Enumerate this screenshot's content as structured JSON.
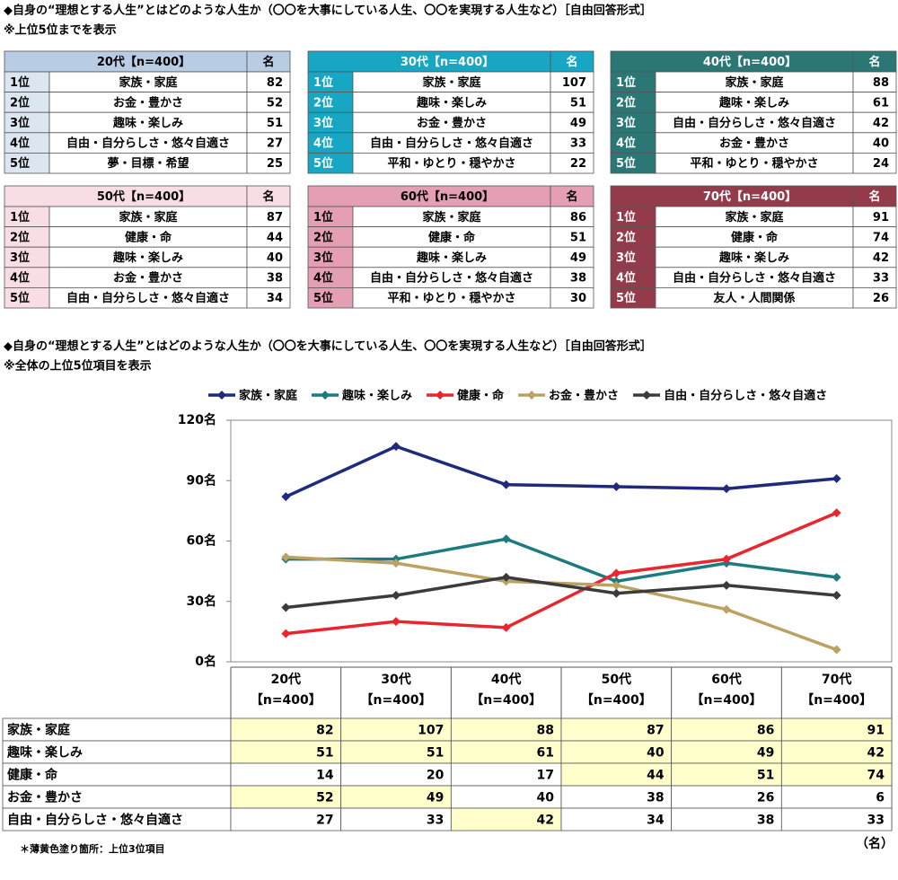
{
  "header": {
    "title": "◆自身の“理想とする人生”とはどのような人生か（〇〇を大事にしている人生、〇〇を実現する人生など）［自由回答形式］",
    "note": "※上位5位までを表示"
  },
  "tables": [
    {
      "title": "20代【n=400】",
      "count_label": "名",
      "header_color": "#b8cce4",
      "rank_color": "#dce6f1",
      "text_color": "#000000",
      "rows": [
        {
          "rank": "1位",
          "item": "家族・家庭",
          "count": 82
        },
        {
          "rank": "2位",
          "item": "お金・豊かさ",
          "count": 52
        },
        {
          "rank": "3位",
          "item": "趣味・楽しみ",
          "count": 51
        },
        {
          "rank": "4位",
          "item": "自由・自分らしさ・悠々自適さ",
          "count": 27
        },
        {
          "rank": "5位",
          "item": "夢・目標・希望",
          "count": 25
        }
      ]
    },
    {
      "title": "30代【n=400】",
      "count_label": "名",
      "header_color": "#17a6c4",
      "rank_color": "#17a6c4",
      "text_color": "#ffffff",
      "rows": [
        {
          "rank": "1位",
          "item": "家族・家庭",
          "count": 107
        },
        {
          "rank": "2位",
          "item": "趣味・楽しみ",
          "count": 51
        },
        {
          "rank": "3位",
          "item": "お金・豊かさ",
          "count": 49
        },
        {
          "rank": "4位",
          "item": "自由・自分らしさ・悠々自適さ",
          "count": 33
        },
        {
          "rank": "5位",
          "item": "平和・ゆとり・穏やかさ",
          "count": 22
        }
      ]
    },
    {
      "title": "40代【n=400】",
      "count_label": "名",
      "header_color": "#2b7775",
      "rank_color": "#2b7775",
      "text_color": "#ffffff",
      "rows": [
        {
          "rank": "1位",
          "item": "家族・家庭",
          "count": 88
        },
        {
          "rank": "2位",
          "item": "趣味・楽しみ",
          "count": 61
        },
        {
          "rank": "3位",
          "item": "自由・自分らしさ・悠々自適さ",
          "count": 42
        },
        {
          "rank": "4位",
          "item": "お金・豊かさ",
          "count": 40
        },
        {
          "rank": "5位",
          "item": "平和・ゆとり・穏やかさ",
          "count": 24
        }
      ]
    },
    {
      "title": "50代【n=400】",
      "count_label": "名",
      "header_color": "#f9dde5",
      "rank_color": "#f9dde5",
      "text_color": "#000000",
      "rows": [
        {
          "rank": "1位",
          "item": "家族・家庭",
          "count": 87
        },
        {
          "rank": "2位",
          "item": "健康・命",
          "count": 44
        },
        {
          "rank": "3位",
          "item": "趣味・楽しみ",
          "count": 40
        },
        {
          "rank": "4位",
          "item": "お金・豊かさ",
          "count": 38
        },
        {
          "rank": "5位",
          "item": "自由・自分らしさ・悠々自適さ",
          "count": 34
        }
      ]
    },
    {
      "title": "60代【n=400】",
      "count_label": "名",
      "header_color": "#e49fb3",
      "rank_color": "#e49fb3",
      "text_color": "#000000",
      "rows": [
        {
          "rank": "1位",
          "item": "家族・家庭",
          "count": 86
        },
        {
          "rank": "2位",
          "item": "健康・命",
          "count": 51
        },
        {
          "rank": "3位",
          "item": "趣味・楽しみ",
          "count": 49
        },
        {
          "rank": "4位",
          "item": "自由・自分らしさ・悠々自適さ",
          "count": 38
        },
        {
          "rank": "5位",
          "item": "平和・ゆとり・穏やかさ",
          "count": 30
        }
      ]
    },
    {
      "title": "70代【n=400】",
      "count_label": "名",
      "header_color": "#943b4b",
      "rank_color": "#943b4b",
      "text_color": "#ffffff",
      "rows": [
        {
          "rank": "1位",
          "item": "家族・家庭",
          "count": 91
        },
        {
          "rank": "2位",
          "item": "健康・命",
          "count": 74
        },
        {
          "rank": "3位",
          "item": "趣味・楽しみ",
          "count": 42
        },
        {
          "rank": "4位",
          "item": "自由・自分らしさ・悠々自適さ",
          "count": 33
        },
        {
          "rank": "5位",
          "item": "友人・人間関係",
          "count": 26
        }
      ]
    }
  ],
  "chart_header": {
    "title": "◆自身の“理想とする人生”とはどのような人生か（〇〇を大事にしている人生、〇〇を実現する人生など）［自由回答形式］",
    "note": "※全体の上位5位項目を表示"
  },
  "chart_data": {
    "type": "line",
    "categories": [
      "20代",
      "30代",
      "40代",
      "50代",
      "60代",
      "70代"
    ],
    "category_sublabels": [
      "【n=400】",
      "【n=400】",
      "【n=400】",
      "【n=400】",
      "【n=400】",
      "【n=400】"
    ],
    "series": [
      {
        "name": "家族・家庭",
        "color": "#1f2a7c",
        "values": [
          82,
          107,
          88,
          87,
          86,
          91
        ]
      },
      {
        "name": "趣味・楽しみ",
        "color": "#1d7b80",
        "values": [
          51,
          51,
          61,
          40,
          49,
          42
        ]
      },
      {
        "name": "健康・命",
        "color": "#e8262e",
        "values": [
          14,
          20,
          17,
          44,
          51,
          74
        ]
      },
      {
        "name": "お金・豊かさ",
        "color": "#bba262",
        "values": [
          52,
          49,
          40,
          38,
          26,
          6
        ]
      },
      {
        "name": "自由・自分らしさ・悠々自適さ",
        "color": "#3b3b3b",
        "values": [
          27,
          33,
          42,
          34,
          38,
          33
        ]
      }
    ],
    "ylim": [
      0,
      120
    ],
    "yticks": [
      {
        "value": 0,
        "label": "0名"
      },
      {
        "value": 30,
        "label": "30名"
      },
      {
        "value": 60,
        "label": "60名"
      },
      {
        "value": 90,
        "label": "90名"
      },
      {
        "value": 120,
        "label": "120名"
      }
    ],
    "grid": false,
    "legend": "top",
    "highlight_color": "#ffffcc",
    "unit": "（名）",
    "footnote": "＊薄黄色塗り箇所：上位3位項目"
  }
}
